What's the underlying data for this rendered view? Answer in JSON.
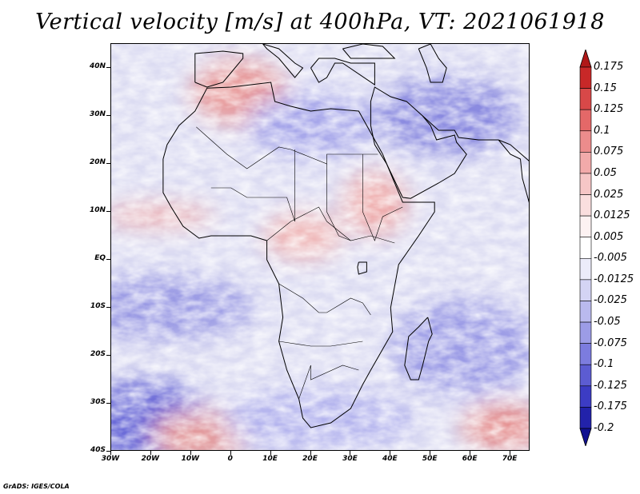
{
  "title": "Vertical velocity [m/s] at 400hPa, VT: 2021061918",
  "footer": "GrADS: IGES/COLA",
  "map": {
    "lon_range": [
      -30,
      75
    ],
    "lat_range": [
      -40,
      45
    ],
    "lat_ticks": [
      {
        "value": 40,
        "label": "40N"
      },
      {
        "value": 30,
        "label": "30N"
      },
      {
        "value": 20,
        "label": "20N"
      },
      {
        "value": 10,
        "label": "10N"
      },
      {
        "value": 0,
        "label": "EQ"
      },
      {
        "value": -10,
        "label": "10S"
      },
      {
        "value": -20,
        "label": "20S"
      },
      {
        "value": -30,
        "label": "30S"
      },
      {
        "value": -40,
        "label": "40S"
      }
    ],
    "lon_ticks": [
      {
        "value": -30,
        "label": "30W"
      },
      {
        "value": -20,
        "label": "20W"
      },
      {
        "value": -10,
        "label": "10W"
      },
      {
        "value": 0,
        "label": "0"
      },
      {
        "value": 10,
        "label": "10E"
      },
      {
        "value": 20,
        "label": "20E"
      },
      {
        "value": 30,
        "label": "30E"
      },
      {
        "value": 40,
        "label": "40E"
      },
      {
        "value": 50,
        "label": "50E"
      },
      {
        "value": 60,
        "label": "60E"
      },
      {
        "value": 70,
        "label": "70E"
      }
    ]
  },
  "colorbar": {
    "levels": [
      "0.175",
      "0.15",
      "0.125",
      "0.1",
      "0.075",
      "0.05",
      "0.025",
      "0.0125",
      "0.005",
      "-0.005",
      "-0.0125",
      "-0.025",
      "-0.05",
      "-0.075",
      "-0.1",
      "-0.125",
      "-0.175",
      "-0.2"
    ],
    "colors": [
      "#b01818",
      "#c82828",
      "#d84848",
      "#e46868",
      "#ec8c8c",
      "#f2aaaa",
      "#f6c6c6",
      "#fadede",
      "#fdf2f2",
      "#ffffff",
      "#ececfa",
      "#d4d4f4",
      "#babaee",
      "#9c9ce6",
      "#7c7cde",
      "#5c5cd2",
      "#3c3cc4",
      "#2222aa",
      "#101090"
    ]
  }
}
